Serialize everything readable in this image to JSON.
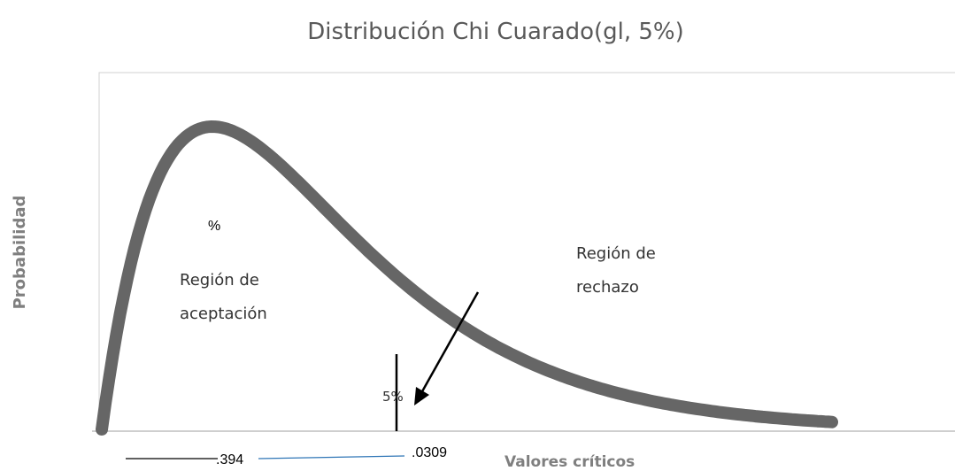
{
  "title": "Distribución Chi Cuarado(gl, 5%)",
  "y_axis_label": "Probabilidad",
  "x_axis_label": "Valores críticos",
  "annotations": {
    "percent": "%",
    "acceptance": [
      "Región de",
      "aceptación"
    ],
    "rejection": [
      "Región de",
      "rechazo"
    ],
    "alpha": "5%",
    "left_value": ".394",
    "right_value": ".0309"
  }
}
